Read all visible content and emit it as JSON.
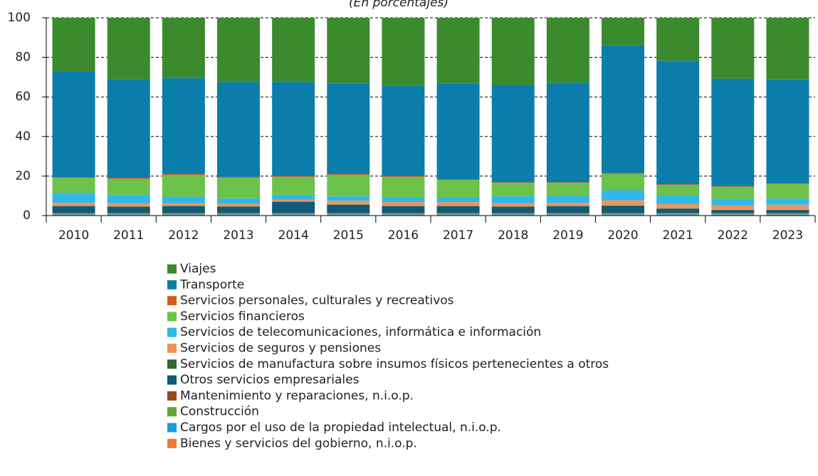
{
  "chart_data": {
    "type": "stacked_bar",
    "subtitle": "(En porcentajes)",
    "categories": [
      "2010",
      "2011",
      "2012",
      "2013",
      "2014",
      "2015",
      "2016",
      "2017",
      "2018",
      "2019",
      "2020",
      "2021",
      "2022",
      "2023"
    ],
    "ylim": [
      0,
      100
    ],
    "yticks": [
      0,
      20,
      40,
      60,
      80,
      100
    ],
    "grid": true,
    "series": [
      {
        "name": "Bienes y servicios del gobierno, n.i.o.p.",
        "color": "#ec7a38",
        "values": [
          0.5,
          0.5,
          0.5,
          0.5,
          0.5,
          0.5,
          0.5,
          0.5,
          0.5,
          0.5,
          0.5,
          0.5,
          0.5,
          0.5
        ]
      },
      {
        "name": "Cargos por el uso de la propiedad intelectual, n.i.o.p.",
        "color": "#1a9cd8",
        "values": [
          0.3,
          0.3,
          0.3,
          0.3,
          0.3,
          0.3,
          0.3,
          0.3,
          0.3,
          0.3,
          0.3,
          0.3,
          0.3,
          0.3
        ]
      },
      {
        "name": "Construcción",
        "color": "#5aa83a",
        "values": [
          0.3,
          0.3,
          0.3,
          0.3,
          0.3,
          0.3,
          0.3,
          0.3,
          0.3,
          0.3,
          0.3,
          0.3,
          0.3,
          0.3
        ]
      },
      {
        "name": "Mantenimiento y reparaciones, n.i.o.p.",
        "color": "#9a4a1a",
        "values": [
          0.2,
          0.2,
          0.2,
          0.2,
          0.2,
          0.2,
          0.2,
          0.2,
          0.2,
          0.2,
          0.2,
          0.2,
          0.2,
          0.2
        ]
      },
      {
        "name": "Otros servicios empresariales",
        "color": "#0f5a78",
        "values": [
          3.5,
          3.2,
          3.5,
          3.2,
          5.7,
          4.2,
          3.5,
          3.5,
          3.2,
          3.5,
          3.7,
          2.2,
          1.5,
          1.5
        ]
      },
      {
        "name": "Servicios de manufactura sobre insumos físicos pertenecientes a otros",
        "color": "#2d6a2b",
        "values": [
          0.1,
          0.1,
          0.1,
          0.1,
          0.1,
          0.1,
          0.1,
          0.1,
          0.1,
          0.1,
          0.1,
          0.1,
          0.1,
          0.1
        ]
      },
      {
        "name": "Servicios de seguros y pensiones",
        "color": "#f0935a",
        "values": [
          1.6,
          1.6,
          1.3,
          1.4,
          0.9,
          1.9,
          1.9,
          1.9,
          1.6,
          1.6,
          2.6,
          2.2,
          2.3,
          2.6
        ]
      },
      {
        "name": "Servicios de telecomunicaciones, informática e información",
        "color": "#30b8e8",
        "values": [
          5.0,
          4.3,
          3.3,
          2.7,
          2.5,
          2.3,
          2.2,
          2.2,
          3.6,
          3.5,
          5.1,
          4.2,
          3.3,
          3.0
        ]
      },
      {
        "name": "Servicios financieros",
        "color": "#6cc24a",
        "values": [
          7.5,
          8.0,
          11.0,
          10.3,
          9.0,
          10.7,
          10.5,
          9.0,
          6.7,
          6.5,
          8.2,
          5.5,
          6.0,
          7.5
        ]
      },
      {
        "name": "Servicios personales, culturales y recreativos",
        "color": "#d45d1a",
        "values": [
          0.3,
          0.5,
          0.5,
          0.5,
          0.5,
          0.5,
          0.5,
          0.3,
          0.3,
          0.3,
          0.5,
          0.3,
          0.3,
          0.3
        ]
      },
      {
        "name": "Transporte",
        "color": "#0b7dab",
        "values": [
          53.7,
          50.0,
          48.5,
          48.0,
          47.5,
          45.8,
          45.8,
          48.5,
          49.2,
          50.4,
          64.5,
          62.5,
          54.4,
          52.5
        ]
      },
      {
        "name": "Viajes",
        "color": "#3b8a2e",
        "values": [
          27.0,
          31.0,
          30.5,
          32.5,
          32.5,
          33.2,
          34.2,
          33.2,
          34.0,
          32.8,
          14.0,
          21.7,
          30.8,
          31.2
        ]
      }
    ]
  }
}
